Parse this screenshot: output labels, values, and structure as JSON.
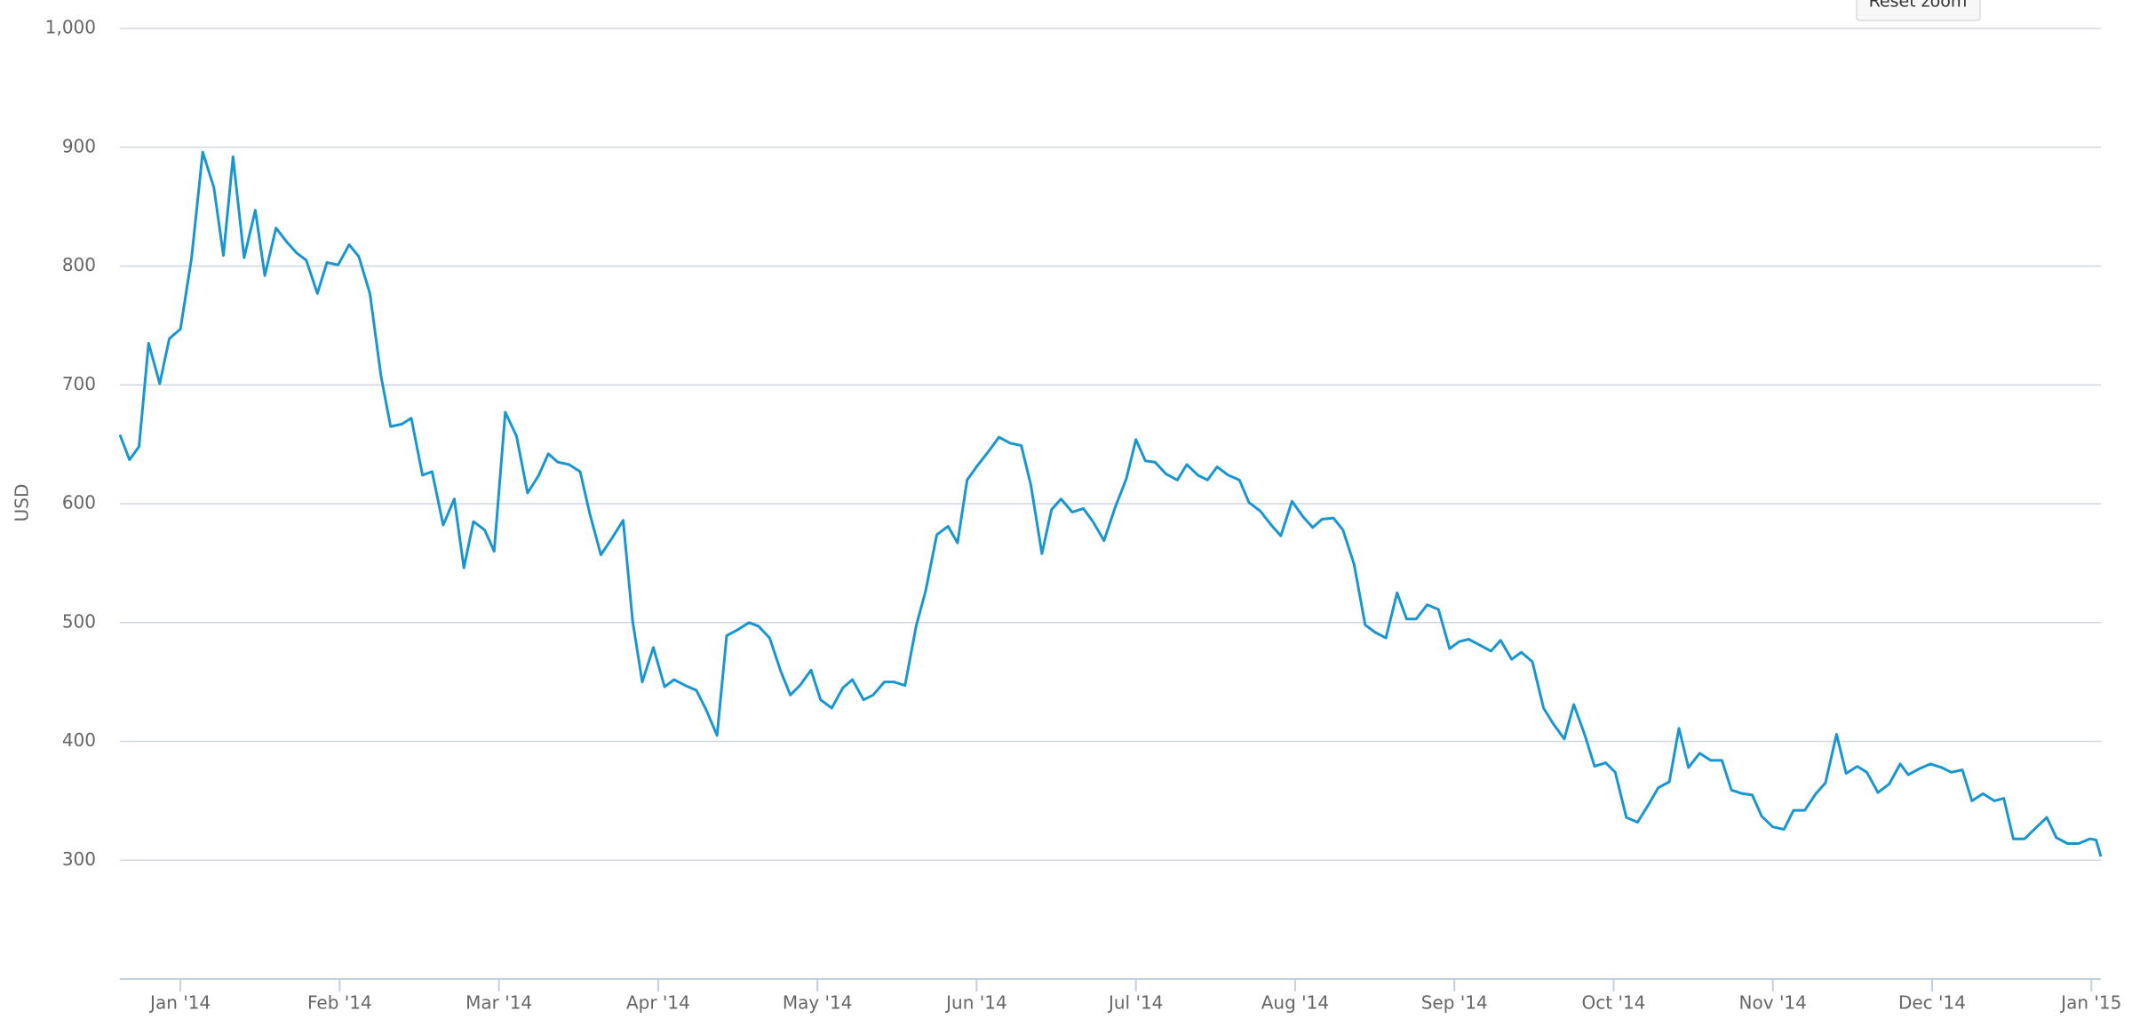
{
  "toolbar": {
    "button": "Reset zoom"
  },
  "chart_data": {
    "type": "line",
    "y_label": "USD",
    "grid": true,
    "series": [
      {
        "name": "USD",
        "color": "#1896d1",
        "x": [
          -0.38,
          -0.32,
          -0.26,
          -0.2,
          -0.13,
          -0.07,
          0,
          0.07,
          0.14,
          0.21,
          0.27,
          0.33,
          0.4,
          0.47,
          0.53,
          0.6,
          0.67,
          0.73,
          0.79,
          0.86,
          0.92,
          0.99,
          1.06,
          1.12,
          1.19,
          1.26,
          1.32,
          1.39,
          1.45,
          1.52,
          1.58,
          1.65,
          1.72,
          1.78,
          1.84,
          1.91,
          1.97,
          2.04,
          2.11,
          2.18,
          2.25,
          2.31,
          2.37,
          2.44,
          2.51,
          2.57,
          2.64,
          2.71,
          2.78,
          2.84,
          2.9,
          2.97,
          3.04,
          3.1,
          3.17,
          3.24,
          3.3,
          3.37,
          3.43,
          3.5,
          3.57,
          3.63,
          3.7,
          3.77,
          3.83,
          3.89,
          3.96,
          4.02,
          4.09,
          4.16,
          4.22,
          4.29,
          4.35,
          4.42,
          4.48,
          4.55,
          4.62,
          4.68,
          4.75,
          4.82,
          4.88,
          4.94,
          5.01,
          5.08,
          5.14,
          5.21,
          5.28,
          5.34,
          5.41,
          5.47,
          5.53,
          5.6,
          5.67,
          5.73,
          5.8,
          5.87,
          5.94,
          6,
          6.06,
          6.12,
          6.19,
          6.26,
          6.32,
          6.39,
          6.45,
          6.51,
          6.58,
          6.65,
          6.71,
          6.78,
          6.85,
          6.91,
          6.98,
          7.05,
          7.11,
          7.17,
          7.24,
          7.3,
          7.37,
          7.44,
          7.5,
          7.57,
          7.64,
          7.7,
          7.76,
          7.83,
          7.9,
          7.97,
          8.03,
          8.09,
          8.16,
          8.23,
          8.29,
          8.36,
          8.42,
          8.49,
          8.56,
          8.62,
          8.69,
          8.75,
          8.82,
          8.88,
          8.95,
          9.01,
          9.08,
          9.15,
          9.22,
          9.28,
          9.35,
          9.41,
          9.47,
          9.54,
          9.61,
          9.68,
          9.74,
          9.81,
          9.87,
          9.93,
          10,
          10.07,
          10.13,
          10.2,
          10.27,
          10.33,
          10.4,
          10.46,
          10.53,
          10.59,
          10.66,
          10.73,
          10.8,
          10.85,
          10.92,
          10.99,
          11.06,
          11.12,
          11.19,
          11.25,
          11.32,
          11.39,
          11.45,
          11.51,
          11.58,
          11.65,
          11.72,
          11.78,
          11.85,
          11.92,
          11.99,
          12.03,
          12.06
        ],
        "values": [
          658,
          637,
          648,
          735,
          701,
          739,
          747,
          807,
          896,
          866,
          809,
          892,
          807,
          847,
          792,
          832,
          820,
          811,
          805,
          777,
          803,
          801,
          818,
          808,
          777,
          707,
          665,
          667,
          672,
          624,
          627,
          582,
          604,
          546,
          585,
          578,
          560,
          677,
          657,
          609,
          624,
          642,
          635,
          633,
          627,
          592,
          557,
          571,
          586,
          501,
          450,
          479,
          446,
          452,
          447,
          443,
          427,
          405,
          489,
          494,
          500,
          497,
          487,
          459,
          439,
          447,
          460,
          435,
          428,
          445,
          452,
          435,
          439,
          450,
          450,
          447,
          497,
          527,
          574,
          581,
          567,
          620,
          633,
          645,
          656,
          651,
          649,
          616,
          558,
          595,
          604,
          593,
          596,
          585,
          569,
          597,
          621,
          654,
          636,
          635,
          625,
          620,
          633,
          624,
          620,
          631,
          624,
          620,
          601,
          594,
          582,
          573,
          602,
          589,
          580,
          587,
          588,
          578,
          549,
          498,
          492,
          487,
          525,
          503,
          503,
          515,
          511,
          478,
          484,
          486,
          481,
          476,
          485,
          469,
          475,
          467,
          428,
          415,
          402,
          431,
          405,
          379,
          382,
          374,
          336,
          332,
          347,
          361,
          366,
          411,
          378,
          390,
          384,
          384,
          359,
          356,
          355,
          337,
          328,
          326,
          342,
          342,
          356,
          365,
          406,
          373,
          379,
          374,
          357,
          364,
          381,
          372,
          377,
          381,
          378,
          374,
          376,
          350,
          356,
          350,
          352,
          318,
          318,
          327,
          336,
          319,
          314,
          314,
          318,
          317,
          303
        ]
      }
    ],
    "xlim": [
      -0.38,
      12.06
    ],
    "xticks": [
      {
        "value": 0,
        "label": "Jan '14"
      },
      {
        "value": 1,
        "label": "Feb '14"
      },
      {
        "value": 2,
        "label": "Mar '14"
      },
      {
        "value": 3,
        "label": "Apr '14"
      },
      {
        "value": 4,
        "label": "May '14"
      },
      {
        "value": 5,
        "label": "Jun '14"
      },
      {
        "value": 6,
        "label": "Jul '14"
      },
      {
        "value": 7,
        "label": "Aug '14"
      },
      {
        "value": 8,
        "label": "Sep '14"
      },
      {
        "value": 9,
        "label": "Oct '14"
      },
      {
        "value": 10,
        "label": "Nov '14"
      },
      {
        "value": 11,
        "label": "Dec '14"
      },
      {
        "value": 12,
        "label": "Jan '15"
      }
    ],
    "ylim": [
      200,
      1000
    ],
    "yticks": [
      300,
      400,
      500,
      600,
      700,
      800,
      900,
      {
        "value": 1000,
        "label": "1,000"
      }
    ]
  }
}
